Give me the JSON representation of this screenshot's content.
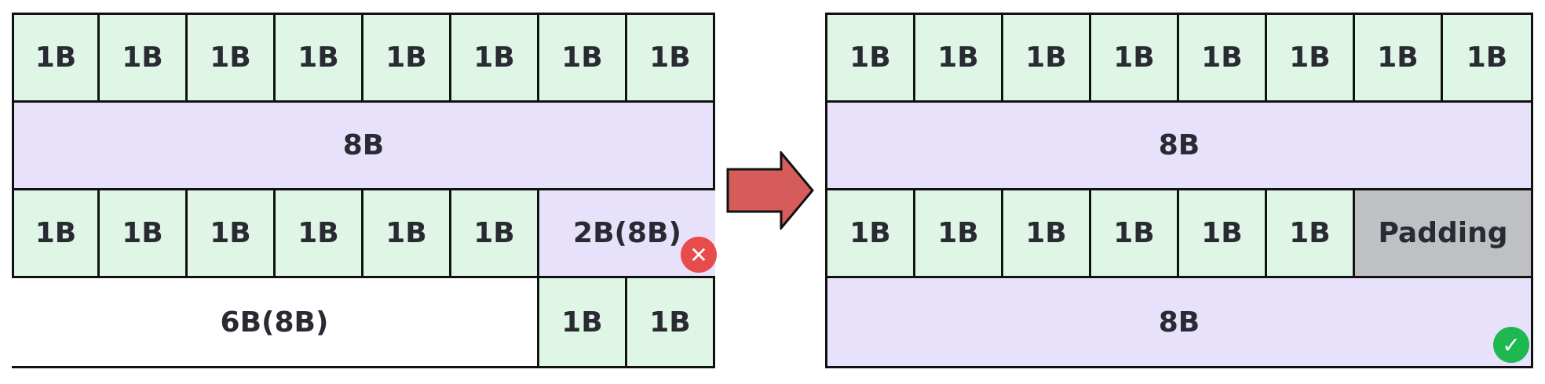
{
  "left": {
    "row1": [
      "1B",
      "1B",
      "1B",
      "1B",
      "1B",
      "1B",
      "1B",
      "1B"
    ],
    "row2": "8B",
    "row3": [
      "1B",
      "1B",
      "1B",
      "1B",
      "1B",
      "1B"
    ],
    "row3_word": "2B(8B)",
    "row4_gap": "6B(8B)",
    "row4": [
      "1B",
      "1B"
    ],
    "status_icon": "x-icon",
    "status_color": "#e84b4b"
  },
  "right": {
    "row1": [
      "1B",
      "1B",
      "1B",
      "1B",
      "1B",
      "1B",
      "1B",
      "1B"
    ],
    "row2": "8B",
    "row3": [
      "1B",
      "1B",
      "1B",
      "1B",
      "1B",
      "1B"
    ],
    "row3_padding": "Padding",
    "row4": "8B",
    "status_icon": "check-icon",
    "status_color": "#1db84f"
  },
  "arrow_color": "#d65c5c",
  "colors": {
    "byte": "#dff5e6",
    "word": "#e7e1fb",
    "padding": "#bfc0c4"
  }
}
